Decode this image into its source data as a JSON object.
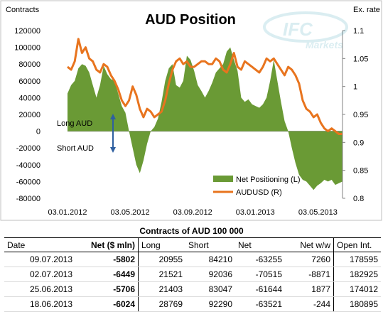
{
  "chart_data": {
    "type": "area+line",
    "title": "AUD Position",
    "y_left_label": "Contracts",
    "y_right_label": "Ex. rate",
    "y_left_ticks": [
      "120000",
      "100000",
      "80000",
      "60000",
      "40000",
      "20000",
      "0",
      "-20000",
      "-40000",
      "-60000",
      "-80000"
    ],
    "y_right_ticks": [
      "1.1",
      "1.05",
      "1",
      "0.95",
      "0.9",
      "0.85",
      "0.8"
    ],
    "x_ticks": [
      "03.01.2012",
      "03.05.2012",
      "03.09.2012",
      "03.01.2013",
      "03.05.2013"
    ],
    "ylim_left": [
      -80000,
      120000
    ],
    "ylim_right": [
      0.8,
      1.1
    ],
    "annotations": {
      "long": "Long AUD",
      "short": "Short AUD"
    },
    "series": [
      {
        "name": "Net Positioning (L)",
        "kind": "area",
        "color": "#6a9a35",
        "x": [
          0,
          1,
          2,
          3,
          4,
          5,
          6,
          7,
          8,
          9,
          10,
          11,
          12,
          13,
          14,
          15,
          16,
          17,
          18,
          19,
          20,
          21,
          22,
          23,
          24,
          25,
          26,
          27,
          28,
          29,
          30,
          31,
          32,
          33,
          34,
          35,
          36,
          37,
          38,
          39,
          40,
          41,
          42,
          43,
          44,
          45,
          46,
          47,
          48,
          49,
          50,
          51,
          52,
          53,
          54,
          55,
          56,
          57,
          58,
          59,
          60,
          61,
          62,
          63,
          64,
          65,
          66,
          67,
          68,
          69,
          70,
          71,
          72,
          73,
          74,
          75,
          76
        ],
        "values": [
          45000,
          55000,
          60000,
          75000,
          80000,
          78000,
          70000,
          55000,
          40000,
          55000,
          78000,
          68000,
          62000,
          60000,
          45000,
          30000,
          22000,
          0,
          -20000,
          -40000,
          -50000,
          -35000,
          -15000,
          0,
          5000,
          15000,
          35000,
          60000,
          75000,
          80000,
          55000,
          52000,
          60000,
          90000,
          85000,
          72000,
          55000,
          48000,
          40000,
          48000,
          58000,
          70000,
          75000,
          80000,
          95000,
          100000,
          85000,
          72000,
          40000,
          35000,
          38000,
          32000,
          30000,
          28000,
          32000,
          40000,
          60000,
          85000,
          60000,
          35000,
          12000,
          0,
          -20000,
          -38000,
          -52000,
          -58000,
          -60000,
          -65000,
          -70000,
          -65000,
          -62000,
          -58000,
          -60000,
          -58000,
          -64000,
          -62000,
          -60000
        ]
      },
      {
        "name": "AUDUSD (R)",
        "kind": "line",
        "color": "#e8741e",
        "x": [
          0,
          1,
          2,
          3,
          4,
          5,
          6,
          7,
          8,
          9,
          10,
          11,
          12,
          13,
          14,
          15,
          16,
          17,
          18,
          19,
          20,
          21,
          22,
          23,
          24,
          25,
          26,
          27,
          28,
          29,
          30,
          31,
          32,
          33,
          34,
          35,
          36,
          37,
          38,
          39,
          40,
          41,
          42,
          43,
          44,
          45,
          46,
          47,
          48,
          49,
          50,
          51,
          52,
          53,
          54,
          55,
          56,
          57,
          58,
          59,
          60,
          61,
          62,
          63,
          64,
          65,
          66,
          67,
          68,
          69,
          70,
          71,
          72,
          73,
          74,
          75,
          76
        ],
        "values": [
          1.035,
          1.03,
          1.045,
          1.085,
          1.06,
          1.07,
          1.05,
          1.045,
          1.03,
          1.025,
          1.04,
          1.035,
          1.02,
          1.01,
          0.995,
          0.975,
          0.965,
          0.975,
          1.0,
          0.985,
          0.96,
          0.945,
          0.96,
          0.955,
          0.945,
          0.95,
          0.955,
          0.975,
          1.005,
          1.03,
          1.045,
          1.05,
          1.04,
          1.045,
          1.035,
          1.035,
          1.04,
          1.045,
          1.045,
          1.04,
          1.04,
          1.05,
          1.045,
          1.03,
          1.025,
          1.04,
          1.06,
          1.035,
          1.03,
          1.045,
          1.04,
          1.035,
          1.03,
          1.025,
          1.035,
          1.05,
          1.045,
          1.05,
          1.04,
          1.03,
          1.02,
          1.035,
          1.03,
          1.02,
          1.005,
          0.975,
          0.96,
          0.955,
          0.945,
          0.95,
          0.935,
          0.925,
          0.92,
          0.925,
          0.92,
          0.915,
          0.915
        ]
      }
    ]
  },
  "table": {
    "title": "Contracts of AUD 100 000",
    "columns": [
      "Date",
      "Net ($ mln)",
      "Long",
      "Short",
      "Net",
      "Net w/w",
      "Open Int."
    ],
    "rows": [
      [
        "09.07.2013",
        "-5802",
        "20955",
        "84210",
        "-63255",
        "7260",
        "178595"
      ],
      [
        "02.07.2013",
        "-6449",
        "21521",
        "92036",
        "-70515",
        "-8871",
        "182925"
      ],
      [
        "25.06.2013",
        "-5706",
        "21403",
        "83047",
        "-61644",
        "1877",
        "174012"
      ],
      [
        "18.06.2013",
        "-6024",
        "28769",
        "92290",
        "-63521",
        "-244",
        "180895"
      ]
    ]
  }
}
